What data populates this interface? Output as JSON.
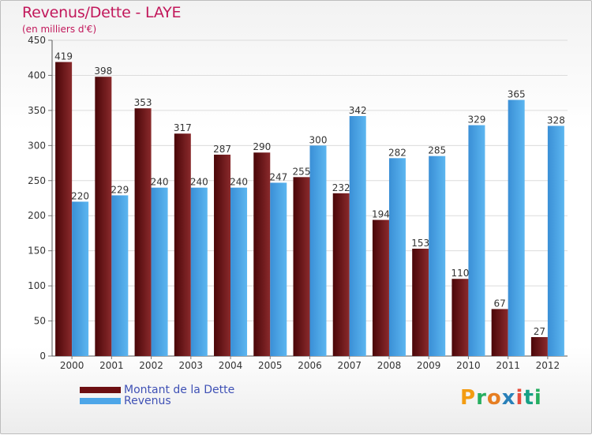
{
  "chart_data": {
    "type": "bar",
    "title": "Revenus/Dette - LAYE",
    "subtitle": "(en milliers d'€)",
    "categories": [
      "2000",
      "2001",
      "2002",
      "2003",
      "2004",
      "2005",
      "2006",
      "2007",
      "2008",
      "2009",
      "2010",
      "2011",
      "2012"
    ],
    "series": [
      {
        "name": "Montant de la Dette",
        "color": "#6d0f12",
        "values": [
          419,
          398,
          353,
          317,
          287,
          290,
          255,
          232,
          194,
          153,
          110,
          67,
          27
        ]
      },
      {
        "name": "Revenus",
        "color": "#4da6e8",
        "values": [
          220,
          229,
          240,
          240,
          240,
          247,
          300,
          342,
          282,
          285,
          329,
          365,
          328
        ]
      }
    ],
    "ylim": [
      0,
      450
    ],
    "yticks": [
      0,
      50,
      100,
      150,
      200,
      250,
      300,
      350,
      400,
      450
    ],
    "grid": true,
    "legend_position": "bottom-left"
  },
  "logo": {
    "text": "Proxiti",
    "colors": [
      "#f39c12",
      "#27ae60",
      "#e67e22",
      "#2980b9",
      "#e74c3c",
      "#16a085",
      "#27ae60"
    ]
  }
}
